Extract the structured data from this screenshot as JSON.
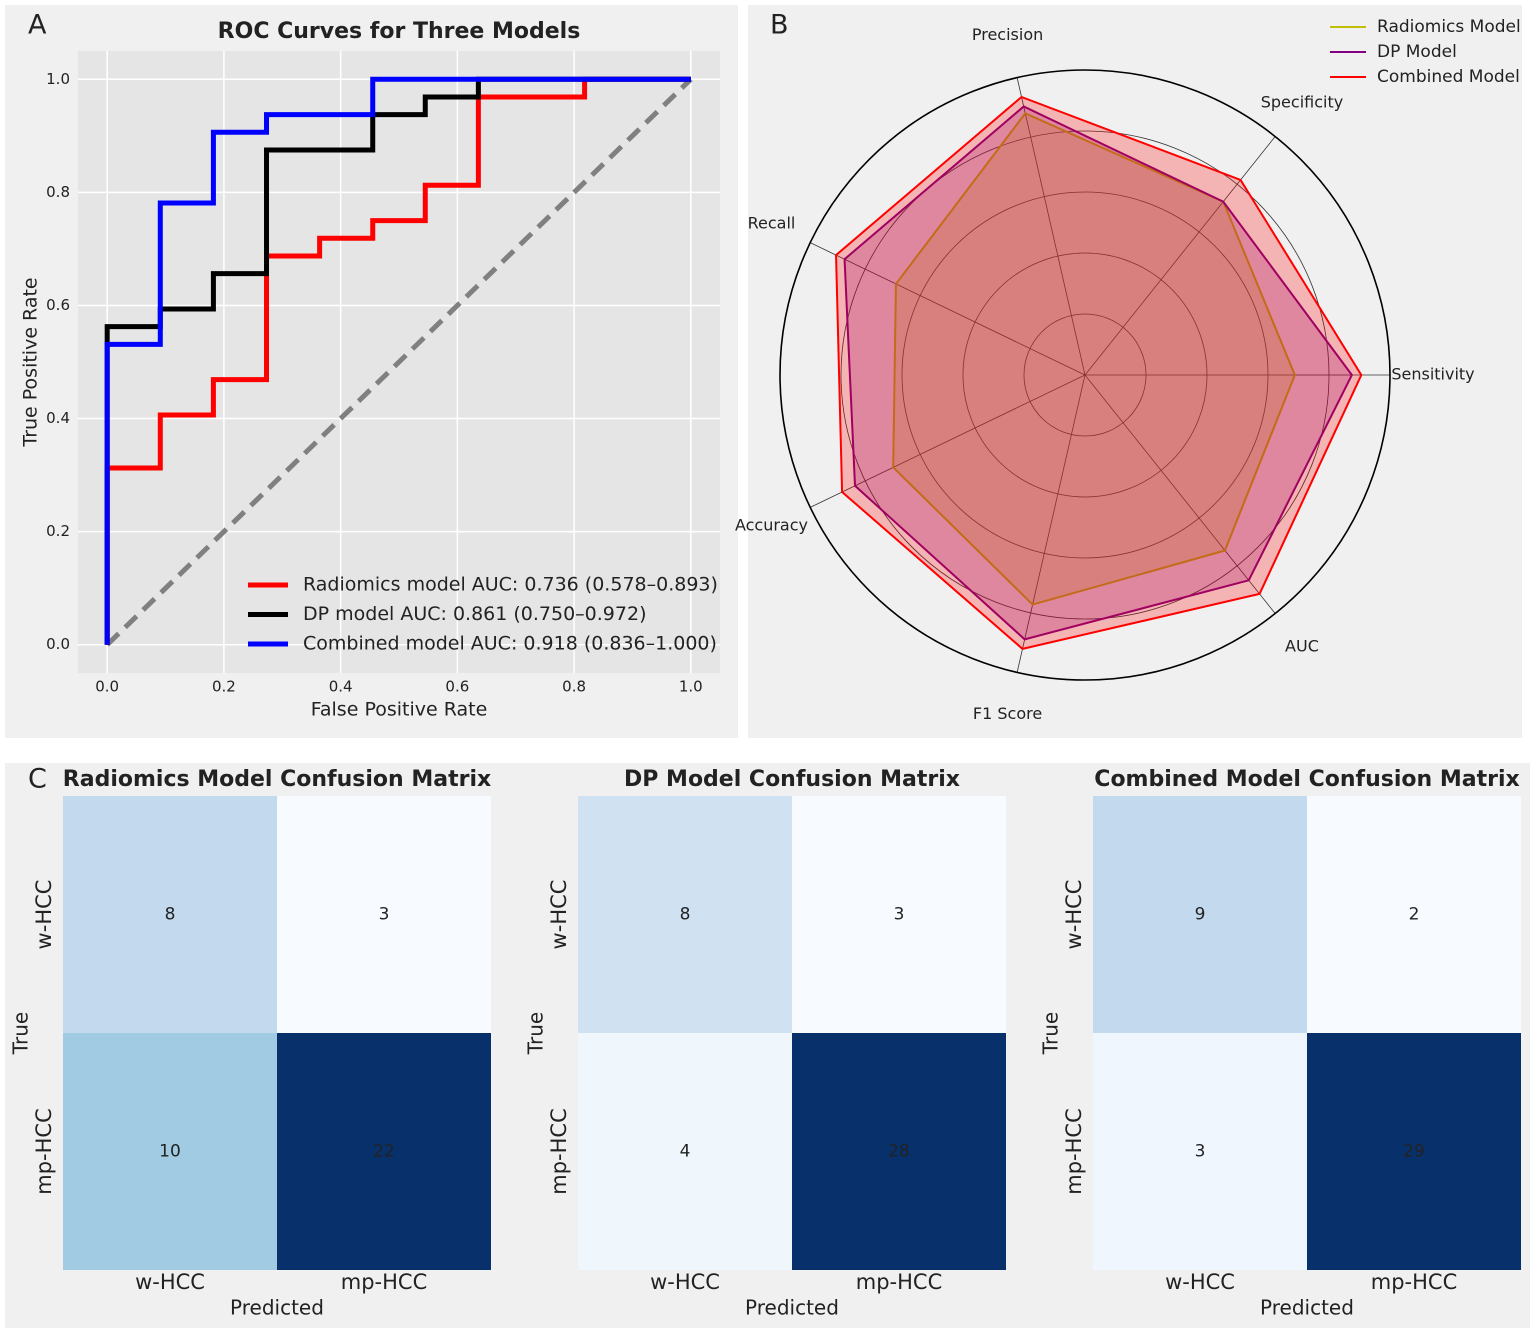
{
  "panel_labels": [
    "A",
    "B",
    "C"
  ],
  "chart_data": [
    {
      "type": "line",
      "title": "ROC Curves for Three Models",
      "xlabel": "False Positive Rate",
      "ylabel": "True Positive Rate",
      "xlim": [
        -0.05,
        1.05
      ],
      "ylim": [
        -0.05,
        1.05
      ],
      "xticks": [
        {
          "value": 0,
          "label": "0.0"
        },
        0.2,
        0.4,
        0.6,
        0.8,
        {
          "value": 1,
          "label": "1.0"
        }
      ],
      "yticks": [
        {
          "value": 0,
          "label": "0.0"
        },
        0.2,
        0.4,
        0.6,
        0.8,
        {
          "value": 1,
          "label": "1.0"
        }
      ],
      "grid": true,
      "diagonal": true,
      "legend": "lower right",
      "series": [
        {
          "name": "Radiomics model AUC: 0.736 (0.578–0.893)",
          "color": "#ff0000",
          "x": [
            0,
            0,
            0.091,
            0.091,
            0.182,
            0.182,
            0.273,
            0.273,
            0.364,
            0.364,
            0.455,
            0.455,
            0.545,
            0.545,
            0.636,
            0.636,
            0.818,
            0.818,
            1
          ],
          "values": [
            0,
            0.3125,
            0.3125,
            0.40625,
            0.40625,
            0.46875,
            0.46875,
            0.6875,
            0.6875,
            0.71875,
            0.71875,
            0.75,
            0.75,
            0.8125,
            0.8125,
            0.96875,
            0.96875,
            1,
            1
          ]
        },
        {
          "name": "DP model AUC: 0.861 (0.750–0.972)",
          "color": "#000000",
          "x": [
            0,
            0,
            0.091,
            0.091,
            0.182,
            0.182,
            0.273,
            0.273,
            0.455,
            0.455,
            0.545,
            0.545,
            0.636,
            0.636,
            1
          ],
          "values": [
            0,
            0.5625,
            0.5625,
            0.59375,
            0.59375,
            0.65625,
            0.65625,
            0.875,
            0.875,
            0.9375,
            0.9375,
            0.96875,
            0.96875,
            1,
            1
          ]
        },
        {
          "name": "Combined model AUC: 0.918 (0.836–1.000)",
          "color": "#0000ff",
          "x": [
            0,
            0,
            0.091,
            0.091,
            0.182,
            0.182,
            0.273,
            0.273,
            0.455,
            0.455,
            1
          ],
          "values": [
            0,
            0.53125,
            0.53125,
            0.78125,
            0.78125,
            0.90625,
            0.90625,
            0.9375,
            0.9375,
            1,
            1
          ]
        }
      ]
    },
    {
      "type": "radar",
      "categories": [
        "Sensitivity",
        "Specificity",
        "Precision",
        "Recall",
        "Accuracy",
        "F1 Score",
        "AUC"
      ],
      "ylim": [
        0,
        1
      ],
      "yticks": [
        0.2,
        0.4,
        0.6,
        0.8
      ],
      "legend": "upper right",
      "series": [
        {
          "name": "Radiomics Model",
          "color": "#bfbf00",
          "values": [
            0.688,
            0.727,
            0.88,
            0.688,
            0.698,
            0.772,
            0.736
          ]
        },
        {
          "name": "DP Model",
          "color": "#800080",
          "values": [
            0.875,
            0.727,
            0.903,
            0.875,
            0.837,
            0.889,
            0.861
          ]
        },
        {
          "name": "Combined Model",
          "color": "#ff0000",
          "values": [
            0.906,
            0.818,
            0.935,
            0.906,
            0.884,
            0.921,
            0.918
          ]
        }
      ]
    },
    {
      "type": "heatmap",
      "title": "Radiomics Model Confusion Matrix",
      "xlabel": "Predicted",
      "ylabel": "True",
      "colormap": "Blues",
      "categories": [
        "w-HCC",
        "mp-HCC"
      ],
      "y_categories": [
        "w-HCC",
        "mp-HCC"
      ],
      "values": [
        [
          8,
          3
        ],
        [
          10,
          22
        ]
      ]
    },
    {
      "type": "heatmap",
      "title": "DP Model Confusion Matrix",
      "xlabel": "Predicted",
      "ylabel": "True",
      "colormap": "Blues",
      "categories": [
        "w-HCC",
        "mp-HCC"
      ],
      "y_categories": [
        "w-HCC",
        "mp-HCC"
      ],
      "values": [
        [
          8,
          3
        ],
        [
          4,
          28
        ]
      ]
    },
    {
      "type": "heatmap",
      "title": "Combined Model Confusion Matrix",
      "xlabel": "Predicted",
      "ylabel": "True",
      "colormap": "Blues",
      "categories": [
        "w-HCC",
        "mp-HCC"
      ],
      "y_categories": [
        "w-HCC",
        "mp-HCC"
      ],
      "values": [
        [
          9,
          2
        ],
        [
          3,
          29
        ]
      ]
    }
  ]
}
